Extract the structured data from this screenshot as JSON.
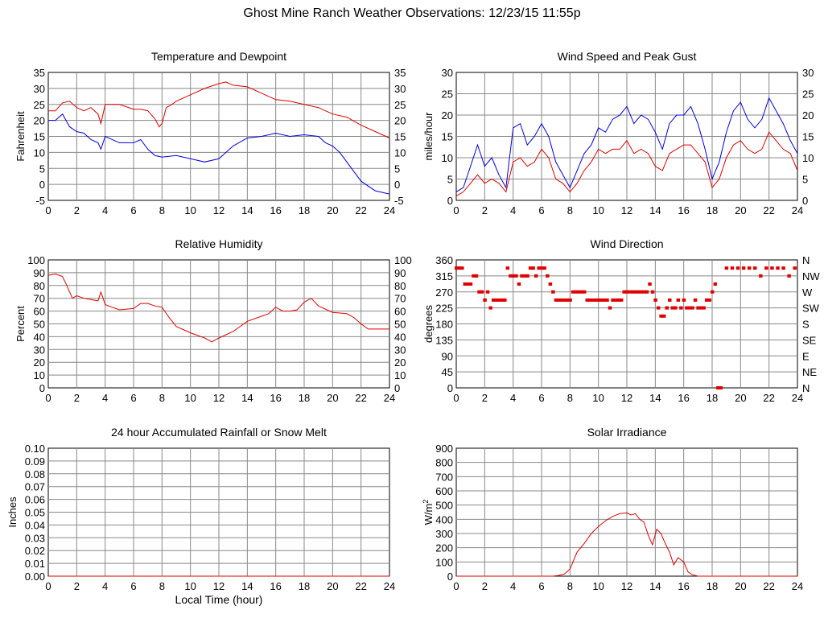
{
  "page": {
    "title": "Ghost Mine Ranch Weather Observations: 12/23/15 11:55p",
    "colors": {
      "red": "#e00000",
      "blue": "#0000e0",
      "grid": "#888888"
    }
  },
  "chart_data": [
    {
      "id": "temp",
      "type": "line",
      "title": "Temperature and Dewpoint",
      "ylabel": "Fahrenheit",
      "xlabel": "",
      "xlim": [
        0,
        24
      ],
      "ylim": [
        -5,
        35
      ],
      "xticks": [
        "0",
        "2",
        "4",
        "6",
        "8",
        "10",
        "12",
        "14",
        "16",
        "18",
        "20",
        "22",
        "24"
      ],
      "yticks": [
        "-5",
        "0",
        "5",
        "10",
        "15",
        "20",
        "25",
        "30",
        "35"
      ],
      "right_yticks": [
        "-5",
        "0",
        "5",
        "10",
        "15",
        "20",
        "25",
        "30",
        "35"
      ],
      "series": [
        {
          "color": "#e00000",
          "x": [
            0,
            0.5,
            1,
            1.5,
            2,
            2.5,
            3,
            3.5,
            3.7,
            4,
            5,
            6,
            6.5,
            7,
            7.5,
            7.8,
            8,
            8.3,
            8.7,
            9,
            10,
            11,
            12,
            12.5,
            13,
            14,
            15,
            16,
            17,
            18,
            19,
            20,
            21,
            22,
            23,
            24
          ],
          "y": [
            23,
            23,
            25.5,
            26,
            24,
            23,
            24,
            22,
            19,
            25,
            25,
            23.5,
            23.5,
            23,
            20.5,
            18,
            19,
            24,
            25,
            26,
            28,
            30,
            31.5,
            32,
            31,
            30.5,
            28.5,
            26.5,
            26,
            25,
            24,
            22,
            21,
            18.5,
            16.5,
            14.5
          ]
        },
        {
          "color": "#0000e0",
          "x": [
            0,
            0.5,
            1,
            1.5,
            2,
            2.5,
            3,
            3.5,
            3.7,
            4,
            5,
            6,
            6.5,
            7,
            7.5,
            8,
            9,
            10,
            11,
            12,
            13,
            14,
            15,
            16,
            17,
            18,
            19,
            19.5,
            20,
            20.5,
            21,
            22,
            23,
            24
          ],
          "y": [
            20,
            20,
            22,
            18,
            16.5,
            16,
            14,
            13,
            11,
            15,
            13,
            13,
            14,
            11,
            9,
            8.5,
            9,
            8,
            7,
            8,
            12,
            14.5,
            15,
            16,
            15,
            15.5,
            15,
            13,
            12,
            10,
            7,
            1,
            -2,
            -3
          ]
        }
      ]
    },
    {
      "id": "wind",
      "type": "line",
      "title": "Wind Speed and Peak Gust",
      "ylabel": "miles/hour",
      "xlabel": "",
      "xlim": [
        0,
        24
      ],
      "ylim": [
        0,
        30
      ],
      "xticks": [
        "0",
        "2",
        "4",
        "6",
        "8",
        "10",
        "12",
        "14",
        "16",
        "18",
        "20",
        "22",
        "24"
      ],
      "yticks": [
        "0",
        "5",
        "10",
        "15",
        "20",
        "25",
        "30"
      ],
      "right_yticks": [
        "0",
        "5",
        "10",
        "15",
        "20",
        "25",
        "30"
      ],
      "series": [
        {
          "color": "#0000e0",
          "x": [
            0,
            0.5,
            1,
            1.5,
            2,
            2.5,
            3,
            3.5,
            4,
            4.5,
            5,
            5.5,
            6,
            6.5,
            7,
            7.5,
            8,
            8.5,
            9,
            9.5,
            10,
            10.5,
            11,
            11.5,
            12,
            12.5,
            13,
            13.5,
            14,
            14.5,
            15,
            15.5,
            16,
            16.5,
            17,
            17.5,
            18,
            18.5,
            19,
            19.5,
            20,
            20.5,
            21,
            21.5,
            22,
            22.5,
            23,
            23.5,
            24
          ],
          "y": [
            2,
            3,
            8,
            13,
            8,
            10,
            6,
            3,
            17,
            18,
            13,
            15,
            18,
            15,
            9,
            6,
            3,
            7,
            11,
            13,
            17,
            16,
            19,
            20,
            22,
            18,
            20,
            19,
            16,
            12,
            18,
            20,
            20,
            22,
            18,
            12,
            5,
            9,
            16,
            21,
            23,
            19,
            17,
            19,
            24,
            21,
            18,
            14,
            11
          ]
        },
        {
          "color": "#e00000",
          "x": [
            0,
            0.5,
            1,
            1.5,
            2,
            2.5,
            3,
            3.5,
            4,
            4.5,
            5,
            5.5,
            6,
            6.5,
            7,
            7.5,
            8,
            8.5,
            9,
            9.5,
            10,
            10.5,
            11,
            11.5,
            12,
            12.5,
            13,
            13.5,
            14,
            14.5,
            15,
            15.5,
            16,
            16.5,
            17,
            17.5,
            18,
            18.5,
            19,
            19.5,
            20,
            20.5,
            21,
            21.5,
            22,
            22.5,
            23,
            23.5,
            24
          ],
          "y": [
            1,
            2,
            4,
            6,
            4,
            5,
            4,
            2,
            9,
            10,
            8,
            9,
            12,
            10,
            5,
            4,
            2,
            4,
            7,
            9,
            12,
            11,
            12,
            12,
            14,
            11,
            12,
            11,
            8,
            7,
            11,
            12,
            13,
            13,
            11,
            9,
            3,
            5,
            10,
            13,
            14,
            12,
            11,
            12,
            16,
            14,
            12,
            11,
            7
          ]
        }
      ]
    },
    {
      "id": "humidity",
      "type": "line",
      "title": "Relative Humidity",
      "ylabel": "Percent",
      "xlabel": "",
      "xlim": [
        0,
        24
      ],
      "ylim": [
        0,
        100
      ],
      "xticks": [
        "0",
        "2",
        "4",
        "6",
        "8",
        "10",
        "12",
        "14",
        "16",
        "18",
        "20",
        "22",
        "24"
      ],
      "yticks": [
        "0",
        "10",
        "20",
        "30",
        "40",
        "50",
        "60",
        "70",
        "80",
        "90",
        "100"
      ],
      "right_yticks": [
        "0",
        "10",
        "20",
        "30",
        "40",
        "50",
        "60",
        "70",
        "80",
        "90",
        "100"
      ],
      "series": [
        {
          "color": "#e00000",
          "x": [
            0,
            0.5,
            1,
            1.3,
            1.7,
            2,
            2.5,
            3,
            3.5,
            3.7,
            4,
            4.5,
            5,
            6,
            6.5,
            7,
            7.5,
            8,
            8.5,
            9,
            10,
            11,
            11.5,
            12,
            13,
            14,
            15,
            15.5,
            16,
            16.5,
            17,
            17.5,
            18,
            18.5,
            19,
            20,
            21,
            21.5,
            22,
            22.5,
            23,
            24
          ],
          "y": [
            88,
            89,
            87,
            80,
            70,
            72,
            70,
            69,
            68,
            75,
            65,
            63,
            61,
            62,
            66,
            66,
            64,
            63,
            55,
            48,
            43,
            39,
            36,
            39,
            44,
            52,
            56,
            58,
            63,
            60,
            60,
            61,
            67,
            70,
            64,
            59,
            58,
            55,
            50,
            46,
            46,
            46
          ]
        }
      ]
    },
    {
      "id": "direction",
      "type": "scatter",
      "title": "Wind Direction",
      "ylabel": "degrees",
      "xlabel": "",
      "xlim": [
        0,
        24
      ],
      "ylim": [
        0,
        360
      ],
      "xticks": [
        "0",
        "2",
        "4",
        "6",
        "8",
        "10",
        "12",
        "14",
        "16",
        "18",
        "20",
        "22",
        "24"
      ],
      "yticks": [
        "0",
        "45",
        "90",
        "135",
        "180",
        "225",
        "270",
        "315",
        "360"
      ],
      "right_yticks": [
        "N",
        "NE",
        "E",
        "SE",
        "S",
        "SW",
        "W",
        "NW",
        "N"
      ],
      "series": [
        {
          "color": "#e00000",
          "x": [
            0,
            0.2,
            0.4,
            0.6,
            0.8,
            1,
            1.2,
            1.4,
            1.6,
            1.8,
            2,
            2.2,
            2.4,
            2.6,
            2.8,
            3,
            3.2,
            3.4,
            3.6,
            3.8,
            4,
            4.2,
            4.4,
            4.6,
            4.8,
            5,
            5.2,
            5.4,
            5.6,
            5.8,
            6,
            6.2,
            6.4,
            6.6,
            6.8,
            7,
            7.2,
            7.4,
            7.6,
            7.8,
            8,
            8.2,
            8.4,
            8.6,
            8.8,
            9,
            9.2,
            9.4,
            9.6,
            9.8,
            10,
            10.2,
            10.4,
            10.6,
            10.8,
            11,
            11.2,
            11.4,
            11.6,
            11.8,
            12,
            12.2,
            12.4,
            12.6,
            12.8,
            13,
            13.2,
            13.4,
            13.6,
            13.8,
            14,
            14.2,
            14.4,
            14.6,
            14.8,
            15,
            15.2,
            15.4,
            15.6,
            15.8,
            16,
            16.2,
            16.4,
            16.6,
            16.8,
            17,
            17.2,
            17.4,
            17.6,
            17.8,
            18,
            18.2,
            18.4,
            18.6,
            19,
            19.4,
            19.8,
            20.2,
            20.6,
            21,
            21.4,
            21.8,
            22.2,
            22.6,
            23,
            23.4,
            23.8
          ],
          "y": [
            337,
            337,
            337,
            292,
            292,
            292,
            315,
            315,
            270,
            270,
            247,
            270,
            225,
            247,
            247,
            247,
            247,
            247,
            337,
            315,
            315,
            315,
            292,
            315,
            315,
            315,
            337,
            337,
            315,
            337,
            337,
            337,
            315,
            292,
            270,
            247,
            247,
            247,
            247,
            247,
            247,
            270,
            270,
            270,
            270,
            270,
            247,
            247,
            247,
            247,
            247,
            247,
            247,
            247,
            225,
            247,
            247,
            247,
            247,
            270,
            270,
            270,
            270,
            270,
            270,
            270,
            270,
            270,
            292,
            270,
            247,
            225,
            202,
            202,
            225,
            247,
            225,
            225,
            247,
            225,
            247,
            225,
            225,
            225,
            247,
            225,
            225,
            225,
            247,
            247,
            270,
            292,
            0,
            0,
            337,
            337,
            337,
            337,
            337,
            337,
            315,
            337,
            337,
            337,
            337,
            315,
            337
          ]
        }
      ]
    },
    {
      "id": "rain",
      "type": "line",
      "title": "24 hour Accumulated Rainfall or Snow Melt",
      "ylabel": "Inches",
      "xlabel": "Local Time (hour)",
      "xlim": [
        0,
        24
      ],
      "ylim": [
        0,
        0.1
      ],
      "xticks": [
        "0",
        "2",
        "4",
        "6",
        "8",
        "10",
        "12",
        "14",
        "16",
        "18",
        "20",
        "22",
        "24"
      ],
      "yticks": [
        "0.00",
        "0.01",
        "0.02",
        "0.03",
        "0.04",
        "0.05",
        "0.06",
        "0.07",
        "0.08",
        "0.09",
        "0.10"
      ],
      "right_yticks": [],
      "series": [
        {
          "color": "#e00000",
          "x": [
            0,
            24
          ],
          "y": [
            0,
            0
          ]
        }
      ]
    },
    {
      "id": "solar",
      "type": "line",
      "title": "Solar Irradiance",
      "ylabel": "W/m",
      "ylabel_sup": "2",
      "xlabel": "",
      "xlim": [
        0,
        24
      ],
      "ylim": [
        0,
        900
      ],
      "xticks": [
        "0",
        "2",
        "4",
        "6",
        "8",
        "10",
        "12",
        "14",
        "16",
        "18",
        "20",
        "22",
        "24"
      ],
      "yticks": [
        "0",
        "100",
        "200",
        "300",
        "400",
        "500",
        "600",
        "700",
        "800",
        "900"
      ],
      "right_yticks": [],
      "series": [
        {
          "color": "#e00000",
          "x": [
            0,
            6.8,
            7.2,
            7.6,
            8,
            8.5,
            9,
            9.5,
            10,
            10.5,
            11,
            11.5,
            12,
            12.3,
            12.6,
            12.9,
            13.2,
            13.5,
            13.8,
            14.1,
            14.4,
            14.7,
            15,
            15.3,
            15.6,
            16,
            16.3,
            16.6,
            17,
            24
          ],
          "y": [
            0,
            0,
            5,
            15,
            50,
            170,
            230,
            300,
            350,
            390,
            420,
            440,
            445,
            430,
            440,
            400,
            380,
            290,
            220,
            330,
            300,
            230,
            170,
            80,
            130,
            100,
            30,
            10,
            0,
            0
          ]
        }
      ]
    }
  ]
}
